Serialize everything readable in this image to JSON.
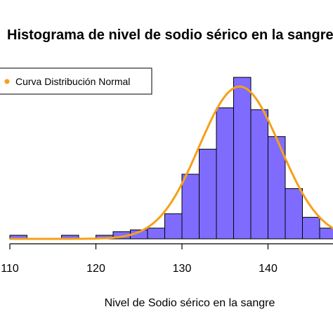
{
  "chart_data": {
    "type": "bar",
    "title": "Histograma de nivel de sodio sérico en la sangre",
    "xlabel": "Nivel de Sodio sérico en la sangre",
    "ylabel": "",
    "xlim": [
      110,
      148
    ],
    "ylim": [
      0,
      0.092
    ],
    "bin_width": 2,
    "bins": [
      {
        "x0": 110,
        "x1": 112,
        "density": 0.002
      },
      {
        "x0": 116,
        "x1": 118,
        "density": 0.002
      },
      {
        "x0": 120,
        "x1": 122,
        "density": 0.002
      },
      {
        "x0": 122,
        "x1": 124,
        "density": 0.004
      },
      {
        "x0": 124,
        "x1": 126,
        "density": 0.005
      },
      {
        "x0": 126,
        "x1": 128,
        "density": 0.006
      },
      {
        "x0": 128,
        "x1": 130,
        "density": 0.014
      },
      {
        "x0": 130,
        "x1": 132,
        "density": 0.036
      },
      {
        "x0": 132,
        "x1": 134,
        "density": 0.05
      },
      {
        "x0": 134,
        "x1": 136,
        "density": 0.073
      },
      {
        "x0": 136,
        "x1": 138,
        "density": 0.09
      },
      {
        "x0": 138,
        "x1": 140,
        "density": 0.072
      },
      {
        "x0": 140,
        "x1": 142,
        "density": 0.057
      },
      {
        "x0": 142,
        "x1": 144,
        "density": 0.028
      },
      {
        "x0": 144,
        "x1": 146,
        "density": 0.012
      },
      {
        "x0": 146,
        "x1": 148,
        "density": 0.006
      }
    ],
    "x_ticks": [
      110,
      120,
      130,
      140
    ],
    "normal_curve": {
      "mean": 136.7,
      "sd": 4.7,
      "name": "Curva Distribución Normal"
    },
    "bar_color": "#7f6cff",
    "curve_color": "#f5a01a",
    "legend": {
      "position": "top-left",
      "label": "Curva Distribución Normal"
    },
    "grid": false
  }
}
